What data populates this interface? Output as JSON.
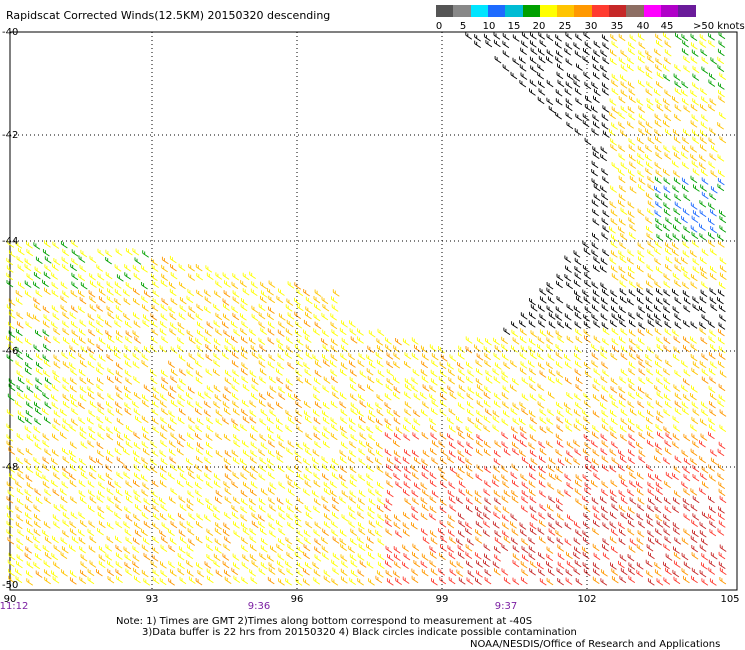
{
  "title": "Rapidscat Corrected Winds(12.5KM) 20150320 descending",
  "legend": {
    "colors": [
      "#555555",
      "#888888",
      "#00e5ff",
      "#1e6bff",
      "#00bcd4",
      "#00a000",
      "#ffff00",
      "#ffc400",
      "#ff9800",
      "#ff3b30",
      "#c62828",
      "#8d6e63",
      "#ff00ff",
      "#b000c8",
      "#6a1b9a"
    ],
    "labels": [
      "0",
      "5",
      "10",
      "15",
      "20",
      "25",
      "30",
      "35",
      "40",
      "45"
    ],
    "unit": ">50 knots"
  },
  "map": {
    "lat_labels": [
      "-40",
      "-42",
      "-44",
      "-46",
      "-48",
      "-50"
    ],
    "lon_labels": [
      "90",
      "93",
      "96",
      "99",
      "102",
      "105"
    ],
    "time_labels": [
      "11:12",
      "9:36",
      "9:37"
    ],
    "grid": "dotted"
  },
  "notes": [
    "Note: 1) Times are GMT 2)Times along bottom correspond to measurement at -40S",
    "3)Data buffer is 22 hrs from 20150320 4) Black circles indicate possible contamination"
  ],
  "credit": "NOAA/NESDIS/Office of Research and Applications"
}
